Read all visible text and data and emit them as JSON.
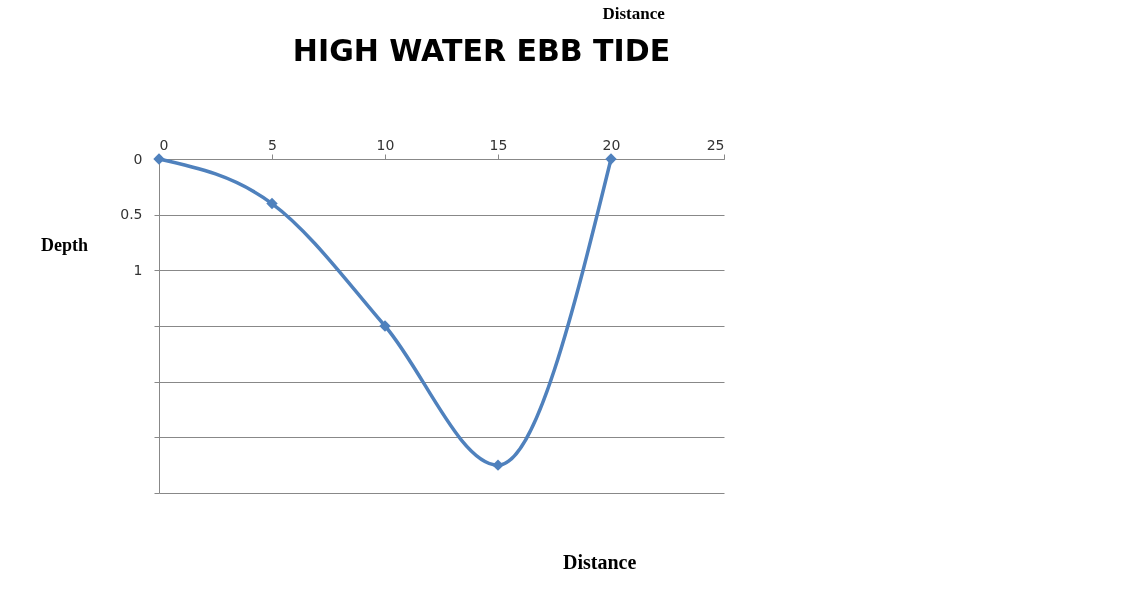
{
  "chart_data": {
    "type": "line",
    "title": "HIGH WATER EBB TIDE",
    "ylabel": "Depth",
    "annotations": [
      "Distance",
      "Distance"
    ],
    "x": [
      0,
      5,
      10,
      15,
      20
    ],
    "series": [
      {
        "color": "#4f81bd",
        "values": [
          0,
          0.4,
          1.5,
          2.75,
          0
        ]
      }
    ],
    "xlim": [
      0,
      25
    ],
    "xticks": [
      0,
      5,
      10,
      15,
      20,
      25
    ],
    "ylim": [
      3,
      0
    ],
    "yticks": [
      0,
      0.5,
      1,
      {
        "value": 1.5,
        "label": null
      },
      {
        "value": 2,
        "label": null
      },
      {
        "value": 2.5,
        "label": null
      },
      {
        "value": 3,
        "label": null
      }
    ],
    "grid": "y",
    "marker": "diamond",
    "line_style": "solid"
  }
}
